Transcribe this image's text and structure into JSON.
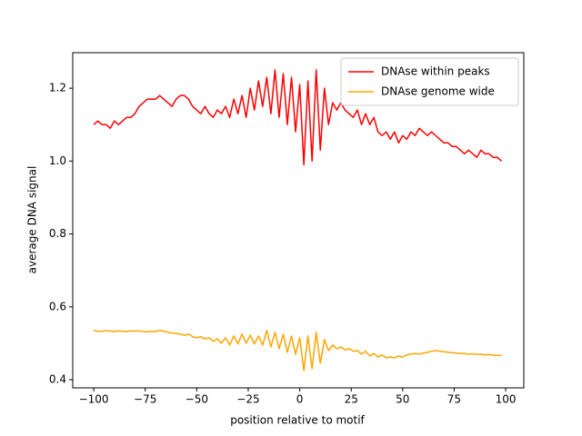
{
  "chart_data": {
    "type": "line",
    "xlabel": "position relative to motif",
    "ylabel": "average DNA signal",
    "x": [
      -100,
      -98,
      -96,
      -94,
      -92,
      -90,
      -88,
      -86,
      -84,
      -82,
      -80,
      -78,
      -76,
      -74,
      -72,
      -70,
      -68,
      -66,
      -64,
      -62,
      -60,
      -58,
      -56,
      -54,
      -52,
      -50,
      -48,
      -46,
      -44,
      -42,
      -40,
      -38,
      -36,
      -34,
      -32,
      -30,
      -28,
      -26,
      -24,
      -22,
      -20,
      -18,
      -16,
      -14,
      -12,
      -10,
      -8,
      -6,
      -4,
      -2,
      0,
      2,
      4,
      6,
      8,
      10,
      12,
      14,
      16,
      18,
      20,
      22,
      24,
      26,
      28,
      30,
      32,
      34,
      36,
      38,
      40,
      42,
      44,
      46,
      48,
      50,
      52,
      54,
      56,
      58,
      60,
      62,
      64,
      66,
      68,
      70,
      72,
      74,
      76,
      78,
      80,
      82,
      84,
      86,
      88,
      90,
      92,
      94,
      96,
      98
    ],
    "series": [
      {
        "name": "DNAse within peaks",
        "color": "#ff0000",
        "values": [
          1.1,
          1.11,
          1.1,
          1.1,
          1.09,
          1.11,
          1.1,
          1.11,
          1.12,
          1.12,
          1.13,
          1.15,
          1.16,
          1.17,
          1.17,
          1.17,
          1.18,
          1.17,
          1.16,
          1.15,
          1.17,
          1.18,
          1.18,
          1.17,
          1.15,
          1.14,
          1.13,
          1.15,
          1.13,
          1.12,
          1.14,
          1.13,
          1.15,
          1.12,
          1.17,
          1.13,
          1.18,
          1.12,
          1.2,
          1.14,
          1.22,
          1.15,
          1.23,
          1.13,
          1.25,
          1.12,
          1.24,
          1.1,
          1.23,
          1.08,
          1.21,
          0.99,
          1.22,
          1.0,
          1.25,
          1.03,
          1.2,
          1.1,
          1.16,
          1.14,
          1.16,
          1.14,
          1.13,
          1.12,
          1.14,
          1.1,
          1.13,
          1.1,
          1.12,
          1.08,
          1.07,
          1.08,
          1.06,
          1.08,
          1.05,
          1.07,
          1.06,
          1.08,
          1.07,
          1.09,
          1.08,
          1.07,
          1.08,
          1.07,
          1.06,
          1.05,
          1.05,
          1.04,
          1.04,
          1.03,
          1.02,
          1.03,
          1.02,
          1.01,
          1.03,
          1.02,
          1.02,
          1.01,
          1.01,
          1.0
        ]
      },
      {
        "name": "DNAse genome wide",
        "color": "#ffa500",
        "values": [
          0.535,
          0.533,
          0.532,
          0.535,
          0.533,
          0.532,
          0.534,
          0.533,
          0.532,
          0.534,
          0.533,
          0.534,
          0.532,
          0.531,
          0.533,
          0.532,
          0.535,
          0.533,
          0.53,
          0.528,
          0.527,
          0.525,
          0.522,
          0.525,
          0.518,
          0.515,
          0.518,
          0.512,
          0.515,
          0.505,
          0.512,
          0.5,
          0.515,
          0.495,
          0.52,
          0.498,
          0.525,
          0.5,
          0.522,
          0.498,
          0.52,
          0.495,
          0.535,
          0.49,
          0.53,
          0.485,
          0.525,
          0.475,
          0.52,
          0.47,
          0.515,
          0.425,
          0.52,
          0.43,
          0.53,
          0.445,
          0.51,
          0.48,
          0.495,
          0.485,
          0.49,
          0.482,
          0.485,
          0.478,
          0.48,
          0.47,
          0.478,
          0.465,
          0.472,
          0.462,
          0.468,
          0.46,
          0.462,
          0.46,
          0.465,
          0.462,
          0.468,
          0.47,
          0.472,
          0.47,
          0.473,
          0.475,
          0.478,
          0.48,
          0.478,
          0.477,
          0.475,
          0.474,
          0.473,
          0.472,
          0.472,
          0.47,
          0.471,
          0.469,
          0.47,
          0.468,
          0.469,
          0.467,
          0.467,
          0.466
        ]
      }
    ],
    "xlim": [
      -110.2,
      108.8
    ],
    "ylim": [
      0.3775,
      1.2975
    ],
    "xticks": [
      {
        "value": -100,
        "label": "−100"
      },
      {
        "value": -75,
        "label": "−75"
      },
      {
        "value": -50,
        "label": "−50"
      },
      {
        "value": -25,
        "label": "−25"
      },
      0,
      25,
      50,
      75,
      100
    ],
    "yticks": [
      0.4,
      0.6,
      0.8,
      {
        "value": 1.0,
        "label": "1.0"
      },
      1.2
    ],
    "legend": "upper right",
    "grid": false
  }
}
